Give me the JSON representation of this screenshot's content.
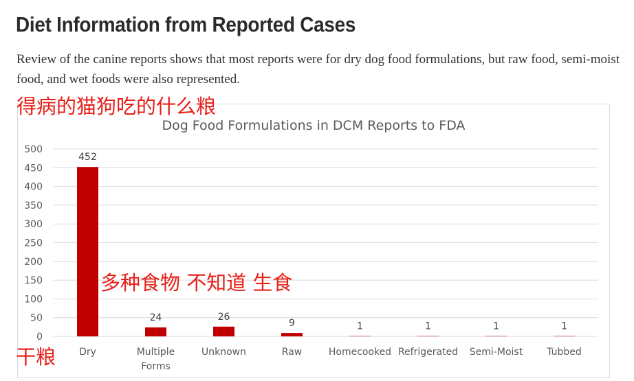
{
  "article": {
    "heading": "Diet Information from Reported Cases",
    "intro": "Review of the canine reports shows that most reports were for dry dog food formulations, but raw food, semi-moist food, and wet foods were also represented."
  },
  "annotations": {
    "top": "得病的猫狗吃的什么粮",
    "middle": "多种食物 不知道  生食",
    "bottom": "干粮"
  },
  "colors": {
    "bar": "#c00000",
    "annotation": "#e8201a",
    "grid": "#d9d9d9",
    "text": "#595959"
  },
  "chart_data": {
    "type": "bar",
    "title": "Dog Food Formulations in DCM Reports to FDA",
    "categories": [
      "Dry",
      "Multiple Forms",
      "Unknown",
      "Raw",
      "Homecooked",
      "Refrigerated",
      "Semi-Moist",
      "Tubbed"
    ],
    "values": [
      452,
      24,
      26,
      9,
      1,
      1,
      1,
      1
    ],
    "data_labels": [
      "452",
      "24",
      "26",
      "9",
      "1",
      "1",
      "1",
      "1"
    ],
    "ylim": [
      0,
      500
    ],
    "yticks": [
      0,
      50,
      100,
      150,
      200,
      250,
      300,
      350,
      400,
      450,
      500
    ],
    "grid": true,
    "legend": "none",
    "xlabel": "",
    "ylabel": ""
  }
}
